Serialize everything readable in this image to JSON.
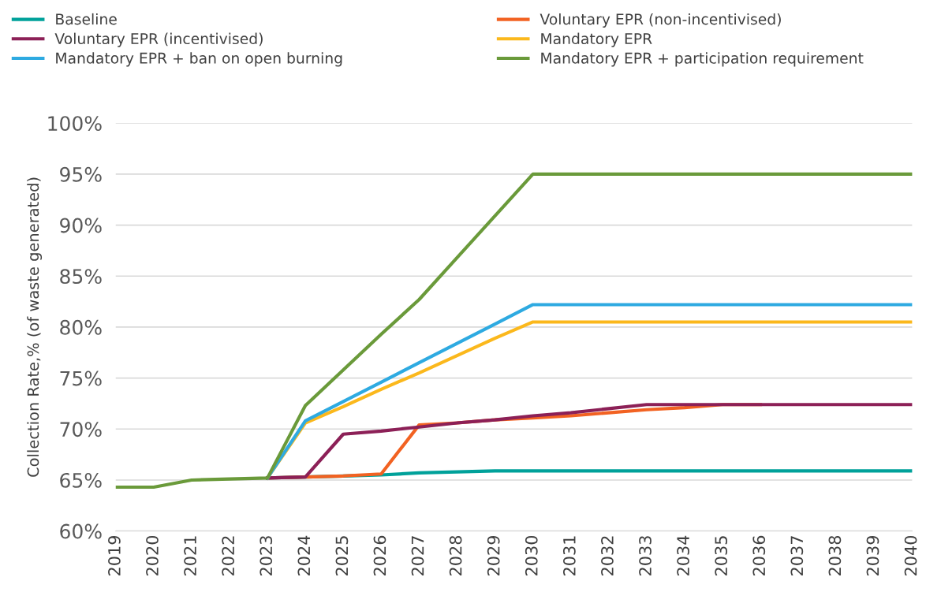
{
  "chart_data": {
    "type": "line",
    "ylabel": "Collection Rate,% (of waste generated)",
    "categories": [
      "2019",
      "2020",
      "2021",
      "2022",
      "2023",
      "2024",
      "2025",
      "2026",
      "2027",
      "2028",
      "2029",
      "2030",
      "2031",
      "2032",
      "2033",
      "2034",
      "2035",
      "2036",
      "2037",
      "2038",
      "2039",
      "2040"
    ],
    "ylim": [
      60,
      100
    ],
    "yticks": [
      {
        "value": 60,
        "label": "60%"
      },
      {
        "value": 65,
        "label": "65%"
      },
      {
        "value": 70,
        "label": "70%"
      },
      {
        "value": 75,
        "label": "75%"
      },
      {
        "value": 80,
        "label": "80%"
      },
      {
        "value": 85,
        "label": "85%"
      },
      {
        "value": 90,
        "label": "90%"
      },
      {
        "value": 95,
        "label": "95%"
      },
      {
        "value": 100,
        "label": "100%"
      }
    ],
    "grid": "y",
    "legend": "top",
    "marker": "none",
    "line_style": "solid",
    "series": [
      {
        "name": "Baseline",
        "color": "#00a19a",
        "values": [
          null,
          null,
          null,
          null,
          65.2,
          65.3,
          65.4,
          65.5,
          65.7,
          65.8,
          65.9,
          65.9,
          65.9,
          65.9,
          65.9,
          65.9,
          65.9,
          65.9,
          65.9,
          65.9,
          65.9,
          65.9
        ]
      },
      {
        "name": "Voluntary EPR (non-incentivised)",
        "color": "#f26222",
        "values": [
          null,
          null,
          null,
          null,
          65.2,
          65.3,
          65.4,
          65.6,
          70.4,
          70.6,
          70.9,
          71.1,
          71.3,
          71.6,
          71.9,
          72.1,
          72.4,
          72.4,
          null,
          null,
          null,
          null
        ]
      },
      {
        "name": "Voluntary EPR (incentivised)",
        "color": "#8c2057",
        "values": [
          null,
          null,
          null,
          null,
          65.2,
          65.3,
          69.5,
          69.8,
          70.2,
          70.6,
          70.9,
          71.3,
          71.6,
          72.0,
          72.4,
          72.4,
          72.4,
          72.4,
          72.4,
          72.4,
          72.4,
          72.4
        ]
      },
      {
        "name": "Mandatory EPR",
        "color": "#fbb81c",
        "values": [
          null,
          null,
          null,
          null,
          65.2,
          70.6,
          72.2,
          73.9,
          75.5,
          77.2,
          78.9,
          80.5,
          80.5,
          80.5,
          80.5,
          80.5,
          80.5,
          80.5,
          80.5,
          80.5,
          80.5,
          80.5
        ]
      },
      {
        "name": "Mandatory EPR + ban on open burning",
        "color": "#2eaae1",
        "values": [
          null,
          null,
          null,
          null,
          65.2,
          70.8,
          72.7,
          74.6,
          76.5,
          78.4,
          80.3,
          82.2,
          82.2,
          82.2,
          82.2,
          82.2,
          82.2,
          82.2,
          82.2,
          82.2,
          82.2,
          82.2
        ]
      },
      {
        "name": "Mandatory EPR + participation requirement",
        "color": "#6a9a3a",
        "values": [
          64.3,
          64.3,
          65.0,
          65.1,
          65.2,
          72.3,
          75.8,
          79.3,
          82.7,
          86.8,
          90.9,
          95.0,
          95.0,
          95.0,
          95.0,
          95.0,
          95.0,
          95.0,
          95.0,
          95.0,
          95.0,
          95.0
        ]
      }
    ]
  }
}
